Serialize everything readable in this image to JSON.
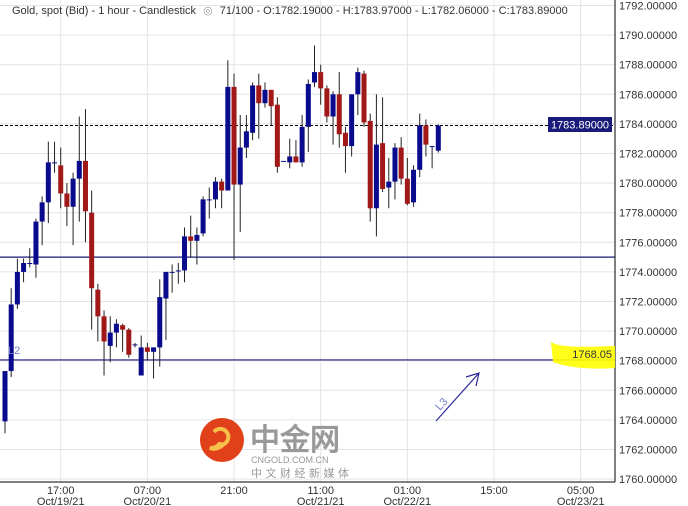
{
  "header": {
    "instrument": "Gold, spot (Bid) - 1 hour - Candlestick",
    "icon": "eye-icon",
    "ohlc": "71/100 - O:1782.19000 - H:1783.97000 - L:1782.06000 - C:1783.89000"
  },
  "colors": {
    "up": "#0a0a8c",
    "down": "#a01818",
    "line": "#1a1a7a",
    "highlight": "#ffff00",
    "current_label_bg": "#1a1a7a"
  },
  "annotations": {
    "current_price_label": "1783.89000",
    "level_label": "1768.05",
    "l2_label": "L2",
    "l3_label": "L3",
    "horizontal_lines": [
      1775.0,
      1768.05
    ],
    "current_price": 1783.89
  },
  "watermark": {
    "logo_text": "中金网",
    "domain": "CNGOLD.COM.CN",
    "slogan": "中 文 财 经 新 媒 体"
  },
  "chart_data": {
    "type": "candlestick",
    "interval": "1 hour",
    "first_candle": "Oct/19/21 08:00",
    "ylim": [
      1760,
      1792
    ],
    "yticks": [
      "1792.00000",
      "1790.00000",
      "1788.00000",
      "1786.00000",
      "1784.00000",
      "1782.00000",
      "1780.00000",
      "1778.00000",
      "1776.00000",
      "1774.00000",
      "1772.00000",
      "1770.00000",
      "1768.00000",
      "1766.00000",
      "1764.00000",
      "1762.00000",
      "1760.00000"
    ],
    "xticks": [
      {
        "time": "17:00",
        "date": "Oct/19/21",
        "hour_index": 9
      },
      {
        "time": "07:00",
        "date": "Oct/20/21",
        "hour_index": 23
      },
      {
        "time": "21:00",
        "date": "",
        "hour_index": 37
      },
      {
        "time": "11:00",
        "date": "Oct/21/21",
        "hour_index": 51
      },
      {
        "time": "01:00",
        "date": "Oct/22/21",
        "hour_index": 65
      },
      {
        "time": "15:00",
        "date": "",
        "hour_index": 79
      },
      {
        "time": "05:00",
        "date": "Oct/23/21",
        "hour_index": 93
      }
    ],
    "grid": true,
    "candles_ohlc": [
      [
        1763.9,
        1767.3,
        1763.1,
        1767.3
      ],
      [
        1767.3,
        1772.9,
        1766.9,
        1771.8
      ],
      [
        1771.8,
        1774.9,
        1771.5,
        1774.0
      ],
      [
        1774.0,
        1774.9,
        1773.3,
        1774.6
      ],
      [
        1774.6,
        1775.6,
        1774.3,
        1774.6
      ],
      [
        1774.5,
        1777.6,
        1773.6,
        1777.4
      ],
      [
        1777.4,
        1779.1,
        1775.8,
        1778.7
      ],
      [
        1778.7,
        1782.8,
        1777.3,
        1781.4
      ],
      [
        1781.4,
        1782.8,
        1780.7,
        1781.4
      ],
      [
        1781.2,
        1782.4,
        1778.3,
        1779.3
      ],
      [
        1779.3,
        1780.0,
        1777.1,
        1778.4
      ],
      [
        1778.4,
        1780.7,
        1775.8,
        1780.3
      ],
      [
        1780.3,
        1784.5,
        1777.4,
        1781.5
      ],
      [
        1781.5,
        1785.0,
        1776.0,
        1778.1
      ],
      [
        1778.0,
        1779.5,
        1770.1,
        1772.9
      ],
      [
        1772.8,
        1773.2,
        1769.3,
        1771.0
      ],
      [
        1771.0,
        1771.4,
        1767.0,
        1769.3
      ],
      [
        1769.0,
        1771.0,
        1767.9,
        1769.9
      ],
      [
        1769.9,
        1770.8,
        1768.9,
        1770.5
      ],
      [
        1770.4,
        1770.5,
        1768.6,
        1770.1
      ],
      [
        1770.1,
        1770.2,
        1768.2,
        1768.4
      ],
      [
        1769.1,
        1769.2,
        1768.9,
        1769.1
      ],
      [
        1767.0,
        1769.7,
        1767.0,
        1768.9
      ],
      [
        1768.9,
        1769.2,
        1768.0,
        1768.6
      ],
      [
        1768.6,
        1768.9,
        1766.8,
        1768.9
      ],
      [
        1768.9,
        1773.5,
        1767.6,
        1772.3
      ],
      [
        1772.2,
        1774.0,
        1769.4,
        1774.0
      ],
      [
        1774.0,
        1774.5,
        1772.6,
        1774.0
      ],
      [
        1774.1,
        1774.6,
        1773.2,
        1774.1
      ],
      [
        1774.1,
        1777.0,
        1773.3,
        1776.4
      ],
      [
        1776.4,
        1777.8,
        1775.0,
        1776.1
      ],
      [
        1776.1,
        1777.0,
        1774.5,
        1776.5
      ],
      [
        1776.6,
        1779.1,
        1776.4,
        1778.9
      ],
      [
        1778.9,
        1779.7,
        1777.6,
        1778.9
      ],
      [
        1778.9,
        1780.4,
        1778.3,
        1780.1
      ],
      [
        1780.1,
        1780.3,
        1778.3,
        1779.5
      ],
      [
        1779.5,
        1788.3,
        1779.5,
        1786.5
      ],
      [
        1786.5,
        1787.4,
        1774.8,
        1779.9
      ],
      [
        1779.9,
        1784.6,
        1776.7,
        1782.4
      ],
      [
        1782.4,
        1784.6,
        1781.7,
        1783.5
      ],
      [
        1783.4,
        1786.8,
        1782.9,
        1786.6
      ],
      [
        1786.6,
        1787.4,
        1783.0,
        1785.4
      ],
      [
        1785.4,
        1786.8,
        1785.1,
        1786.3
      ],
      [
        1786.3,
        1786.3,
        1783.9,
        1785.2
      ],
      [
        1785.3,
        1785.8,
        1780.7,
        1781.1
      ],
      [
        1781.5,
        1781.5,
        1781.5,
        1781.5
      ],
      [
        1781.4,
        1783.0,
        1781.0,
        1781.8
      ],
      [
        1781.8,
        1782.9,
        1781.4,
        1781.4
      ],
      [
        1781.4,
        1784.6,
        1781.1,
        1783.8
      ],
      [
        1783.8,
        1787.0,
        1782.1,
        1786.7
      ],
      [
        1786.8,
        1789.3,
        1786.5,
        1787.5
      ],
      [
        1787.5,
        1788.0,
        1785.3,
        1786.4
      ],
      [
        1786.4,
        1786.6,
        1784.1,
        1784.5
      ],
      [
        1784.5,
        1786.2,
        1782.6,
        1786.0
      ],
      [
        1786.0,
        1787.5,
        1782.4,
        1783.3
      ],
      [
        1783.4,
        1783.8,
        1780.7,
        1782.5
      ],
      [
        1782.5,
        1786.0,
        1781.8,
        1786.0
      ],
      [
        1786.0,
        1787.8,
        1784.6,
        1787.5
      ],
      [
        1787.4,
        1787.6,
        1783.8,
        1784.1
      ],
      [
        1784.2,
        1784.7,
        1777.4,
        1778.3
      ],
      [
        1778.3,
        1786.0,
        1776.4,
        1782.6
      ],
      [
        1782.7,
        1785.8,
        1779.4,
        1779.6
      ],
      [
        1779.7,
        1781.7,
        1778.3,
        1780.1
      ],
      [
        1780.1,
        1782.7,
        1778.9,
        1782.4
      ],
      [
        1782.4,
        1783.1,
        1779.9,
        1780.3
      ],
      [
        1780.3,
        1781.7,
        1778.5,
        1778.6
      ],
      [
        1778.7,
        1781.2,
        1778.4,
        1780.9
      ],
      [
        1780.9,
        1784.7,
        1780.4,
        1783.9
      ],
      [
        1783.9,
        1784.3,
        1781.8,
        1782.6
      ],
      [
        1782.5,
        1782.5,
        1781.0,
        1782.5
      ],
      [
        1782.19,
        1783.97,
        1782.06,
        1783.89
      ]
    ]
  }
}
